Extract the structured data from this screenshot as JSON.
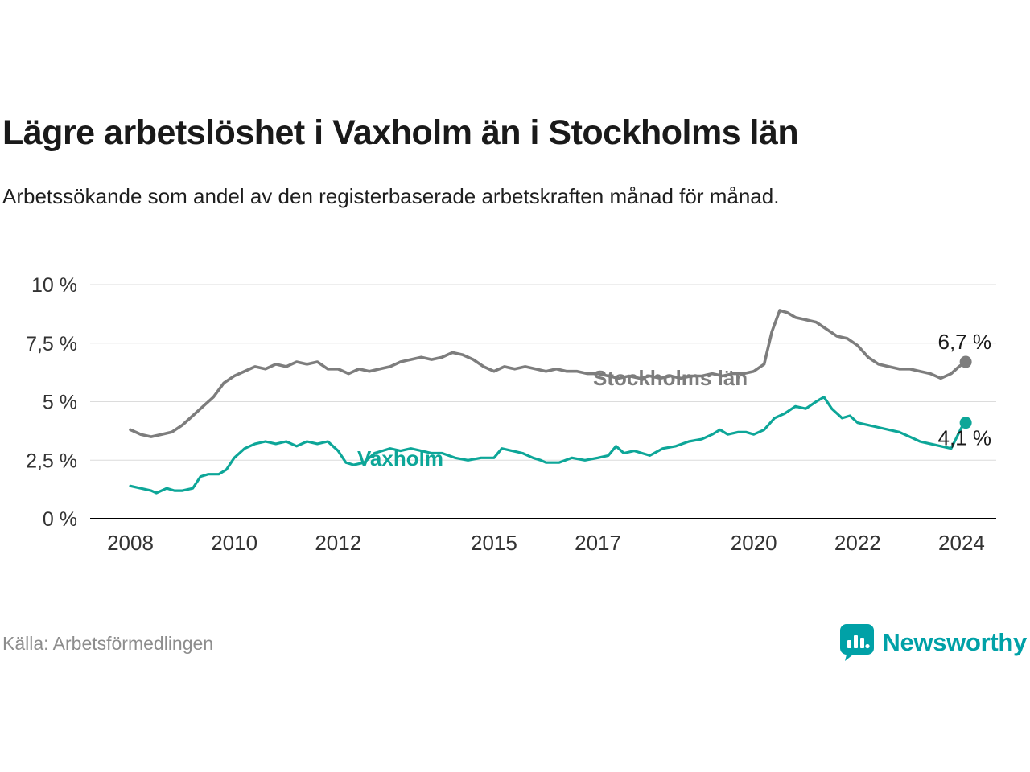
{
  "header": {
    "title": "Lägre arbetslöshet i Vaxholm än i Stockholms län",
    "subtitle": "Arbetssökande som andel av den registerbaserade arbetskraften månad för månad."
  },
  "source": "Källa: Arbetsförmedlingen",
  "brand": {
    "name": "Newsworthy",
    "color": "#00a1a7",
    "icon": "bar-chart-bubble-icon"
  },
  "colors": {
    "stockholm_line": "#7d7d7d",
    "vaxholm_line": "#0da698",
    "grid": "#dcdcdc",
    "axis": "#000000",
    "tick_text": "#333333",
    "annotation_text": "#1a1a1a"
  },
  "chart_data": {
    "type": "line",
    "title": "Lägre arbetslöshet i Vaxholm än i Stockholms län",
    "xlabel": "",
    "ylabel": "",
    "ylim": [
      0,
      10
    ],
    "xlim": [
      2008,
      2024.3
    ],
    "grid": "horizontal",
    "legend_position": "inline-labels",
    "yticks": [
      0,
      2.5,
      5,
      7.5,
      10
    ],
    "ytick_labels": [
      "0 %",
      "2,5 %",
      "5 %",
      "7,5 %",
      "10 %"
    ],
    "xticks": [
      2008,
      2010,
      2012,
      2015,
      2017,
      2020,
      2022,
      2024
    ],
    "xtick_labels": [
      "2008",
      "2010",
      "2012",
      "2015",
      "2017",
      "2020",
      "2022",
      "2024"
    ],
    "series": [
      {
        "name": "Stockholms län",
        "color": "#7d7d7d",
        "end_label": "6,7 %",
        "end_value": 6.7,
        "data": [
          [
            2008.0,
            3.8
          ],
          [
            2008.2,
            3.6
          ],
          [
            2008.4,
            3.5
          ],
          [
            2008.6,
            3.6
          ],
          [
            2008.8,
            3.7
          ],
          [
            2009.0,
            4.0
          ],
          [
            2009.2,
            4.4
          ],
          [
            2009.4,
            4.8
          ],
          [
            2009.6,
            5.2
          ],
          [
            2009.8,
            5.8
          ],
          [
            2010.0,
            6.1
          ],
          [
            2010.2,
            6.3
          ],
          [
            2010.4,
            6.5
          ],
          [
            2010.6,
            6.4
          ],
          [
            2010.8,
            6.6
          ],
          [
            2011.0,
            6.5
          ],
          [
            2011.2,
            6.7
          ],
          [
            2011.4,
            6.6
          ],
          [
            2011.6,
            6.7
          ],
          [
            2011.8,
            6.4
          ],
          [
            2012.0,
            6.4
          ],
          [
            2012.2,
            6.2
          ],
          [
            2012.4,
            6.4
          ],
          [
            2012.6,
            6.3
          ],
          [
            2012.8,
            6.4
          ],
          [
            2013.0,
            6.5
          ],
          [
            2013.2,
            6.7
          ],
          [
            2013.4,
            6.8
          ],
          [
            2013.6,
            6.9
          ],
          [
            2013.8,
            6.8
          ],
          [
            2014.0,
            6.9
          ],
          [
            2014.2,
            7.1
          ],
          [
            2014.4,
            7.0
          ],
          [
            2014.6,
            6.8
          ],
          [
            2014.8,
            6.5
          ],
          [
            2015.0,
            6.3
          ],
          [
            2015.2,
            6.5
          ],
          [
            2015.4,
            6.4
          ],
          [
            2015.6,
            6.5
          ],
          [
            2015.8,
            6.4
          ],
          [
            2016.0,
            6.3
          ],
          [
            2016.2,
            6.4
          ],
          [
            2016.4,
            6.3
          ],
          [
            2016.6,
            6.3
          ],
          [
            2016.8,
            6.2
          ],
          [
            2017.0,
            6.2
          ],
          [
            2017.2,
            6.1
          ],
          [
            2017.4,
            6.0
          ],
          [
            2017.6,
            6.1
          ],
          [
            2017.8,
            6.0
          ],
          [
            2018.0,
            6.1
          ],
          [
            2018.2,
            6.0
          ],
          [
            2018.4,
            6.1
          ],
          [
            2018.6,
            6.0
          ],
          [
            2018.8,
            6.1
          ],
          [
            2019.0,
            6.1
          ],
          [
            2019.2,
            6.2
          ],
          [
            2019.4,
            6.1
          ],
          [
            2019.6,
            6.2
          ],
          [
            2019.8,
            6.2
          ],
          [
            2020.0,
            6.3
          ],
          [
            2020.2,
            6.6
          ],
          [
            2020.35,
            8.0
          ],
          [
            2020.5,
            8.9
          ],
          [
            2020.65,
            8.8
          ],
          [
            2020.8,
            8.6
          ],
          [
            2021.0,
            8.5
          ],
          [
            2021.2,
            8.4
          ],
          [
            2021.4,
            8.1
          ],
          [
            2021.6,
            7.8
          ],
          [
            2021.8,
            7.7
          ],
          [
            2022.0,
            7.4
          ],
          [
            2022.2,
            6.9
          ],
          [
            2022.4,
            6.6
          ],
          [
            2022.6,
            6.5
          ],
          [
            2022.8,
            6.4
          ],
          [
            2023.0,
            6.4
          ],
          [
            2023.2,
            6.3
          ],
          [
            2023.4,
            6.2
          ],
          [
            2023.6,
            6.0
          ],
          [
            2023.8,
            6.2
          ],
          [
            2023.95,
            6.5
          ],
          [
            2024.08,
            6.7
          ]
        ]
      },
      {
        "name": "Vaxholm",
        "color": "#0da698",
        "end_label": "4,1 %",
        "end_value": 4.1,
        "data": [
          [
            2008.0,
            1.4
          ],
          [
            2008.2,
            1.3
          ],
          [
            2008.4,
            1.2
          ],
          [
            2008.5,
            1.1
          ],
          [
            2008.7,
            1.3
          ],
          [
            2008.85,
            1.2
          ],
          [
            2009.0,
            1.2
          ],
          [
            2009.2,
            1.3
          ],
          [
            2009.35,
            1.8
          ],
          [
            2009.5,
            1.9
          ],
          [
            2009.7,
            1.9
          ],
          [
            2009.85,
            2.1
          ],
          [
            2010.0,
            2.6
          ],
          [
            2010.2,
            3.0
          ],
          [
            2010.4,
            3.2
          ],
          [
            2010.6,
            3.3
          ],
          [
            2010.8,
            3.2
          ],
          [
            2011.0,
            3.3
          ],
          [
            2011.2,
            3.1
          ],
          [
            2011.4,
            3.3
          ],
          [
            2011.6,
            3.2
          ],
          [
            2011.8,
            3.3
          ],
          [
            2012.0,
            2.9
          ],
          [
            2012.15,
            2.4
          ],
          [
            2012.3,
            2.3
          ],
          [
            2012.5,
            2.4
          ],
          [
            2012.7,
            2.8
          ],
          [
            2012.85,
            2.9
          ],
          [
            2013.0,
            3.0
          ],
          [
            2013.2,
            2.9
          ],
          [
            2013.4,
            3.0
          ],
          [
            2013.6,
            2.9
          ],
          [
            2013.8,
            2.8
          ],
          [
            2014.0,
            2.8
          ],
          [
            2014.25,
            2.6
          ],
          [
            2014.5,
            2.5
          ],
          [
            2014.75,
            2.6
          ],
          [
            2015.0,
            2.6
          ],
          [
            2015.15,
            3.0
          ],
          [
            2015.35,
            2.9
          ],
          [
            2015.55,
            2.8
          ],
          [
            2015.75,
            2.6
          ],
          [
            2015.9,
            2.5
          ],
          [
            2016.0,
            2.4
          ],
          [
            2016.25,
            2.4
          ],
          [
            2016.5,
            2.6
          ],
          [
            2016.75,
            2.5
          ],
          [
            2017.0,
            2.6
          ],
          [
            2017.2,
            2.7
          ],
          [
            2017.35,
            3.1
          ],
          [
            2017.5,
            2.8
          ],
          [
            2017.7,
            2.9
          ],
          [
            2017.85,
            2.8
          ],
          [
            2018.0,
            2.7
          ],
          [
            2018.25,
            3.0
          ],
          [
            2018.5,
            3.1
          ],
          [
            2018.75,
            3.3
          ],
          [
            2019.0,
            3.4
          ],
          [
            2019.2,
            3.6
          ],
          [
            2019.35,
            3.8
          ],
          [
            2019.5,
            3.6
          ],
          [
            2019.7,
            3.7
          ],
          [
            2019.85,
            3.7
          ],
          [
            2020.0,
            3.6
          ],
          [
            2020.2,
            3.8
          ],
          [
            2020.4,
            4.3
          ],
          [
            2020.6,
            4.5
          ],
          [
            2020.8,
            4.8
          ],
          [
            2021.0,
            4.7
          ],
          [
            2021.2,
            5.0
          ],
          [
            2021.35,
            5.2
          ],
          [
            2021.5,
            4.7
          ],
          [
            2021.7,
            4.3
          ],
          [
            2021.85,
            4.4
          ],
          [
            2022.0,
            4.1
          ],
          [
            2022.2,
            4.0
          ],
          [
            2022.4,
            3.9
          ],
          [
            2022.6,
            3.8
          ],
          [
            2022.8,
            3.7
          ],
          [
            2023.0,
            3.5
          ],
          [
            2023.2,
            3.3
          ],
          [
            2023.4,
            3.2
          ],
          [
            2023.6,
            3.1
          ],
          [
            2023.8,
            3.0
          ],
          [
            2024.0,
            3.9
          ],
          [
            2024.08,
            4.1
          ]
        ]
      }
    ]
  }
}
